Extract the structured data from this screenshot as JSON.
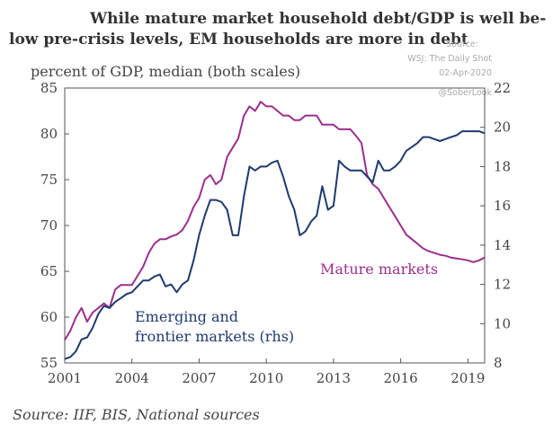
{
  "header": {
    "title_line1": "While mature market household debt/GDP is well be-",
    "title_line2": "low pre-crisis levels, EM households are more in debt",
    "credit_source": "Source: ",
    "credit_publication": "WSJ: The Daily Shot",
    "credit_date": "02-Apr-2020",
    "credit_handle": "@SoberLook"
  },
  "footer": {
    "source": "Source: IIF, BIS, National sources"
  },
  "chart_data": {
    "type": "line",
    "ylabel": "percent of GDP, median (both scales)",
    "ylim_left": [
      55,
      85
    ],
    "ylim_right": [
      8,
      22
    ],
    "xlim": [
      2001,
      2019.75
    ],
    "left_ticks": [
      55,
      60,
      65,
      70,
      75,
      80,
      85
    ],
    "right_ticks": [
      8,
      10,
      12,
      14,
      16,
      18,
      20,
      22
    ],
    "x_ticks": [
      2001,
      2004,
      2007,
      2010,
      2013,
      2016,
      2019
    ],
    "grid": false,
    "annotations": [
      {
        "text_lines": [
          "Mature markets"
        ],
        "series": "mature"
      },
      {
        "text_lines": [
          "Emerging and",
          "frontier markets (rhs)"
        ],
        "series": "em"
      }
    ],
    "series": [
      {
        "key": "mature",
        "axis": "left",
        "color": "#9b2f8e",
        "x": [
          2001.0,
          2001.25,
          2001.5,
          2001.75,
          2002.0,
          2002.25,
          2002.5,
          2002.75,
          2003.0,
          2003.25,
          2003.5,
          2003.75,
          2004.0,
          2004.25,
          2004.5,
          2004.75,
          2005.0,
          2005.25,
          2005.5,
          2005.75,
          2006.0,
          2006.25,
          2006.5,
          2006.75,
          2007.0,
          2007.25,
          2007.5,
          2007.75,
          2008.0,
          2008.25,
          2008.5,
          2008.75,
          2009.0,
          2009.25,
          2009.5,
          2009.75,
          2010.0,
          2010.25,
          2010.5,
          2010.75,
          2011.0,
          2011.25,
          2011.5,
          2011.75,
          2012.0,
          2012.25,
          2012.5,
          2012.75,
          2013.0,
          2013.25,
          2013.5,
          2013.75,
          2014.0,
          2014.25,
          2014.5,
          2014.75,
          2015.0,
          2015.25,
          2015.5,
          2015.75,
          2016.0,
          2016.25,
          2016.5,
          2016.75,
          2017.0,
          2017.25,
          2017.5,
          2017.75,
          2018.0,
          2018.25,
          2018.5,
          2018.75,
          2019.0,
          2019.25,
          2019.5,
          2019.75
        ],
        "values": [
          57.5,
          58.5,
          60.0,
          61.0,
          59.5,
          60.5,
          61.0,
          61.5,
          61.0,
          63.0,
          63.5,
          63.5,
          63.5,
          64.5,
          65.5,
          67.0,
          68.0,
          68.5,
          68.5,
          68.8,
          69.0,
          69.5,
          70.5,
          72.0,
          73.0,
          75.0,
          75.5,
          74.5,
          75.0,
          77.5,
          78.5,
          79.5,
          82.0,
          83.0,
          82.5,
          83.5,
          83.0,
          83.0,
          82.5,
          82.0,
          82.0,
          81.5,
          81.5,
          82.0,
          82.0,
          82.0,
          81.0,
          81.0,
          81.0,
          80.5,
          80.5,
          80.5,
          79.8,
          79.0,
          75.5,
          74.5,
          74.0,
          73.0,
          72.0,
          71.0,
          70.0,
          69.0,
          68.5,
          68.0,
          67.5,
          67.2,
          67.0,
          66.8,
          66.7,
          66.5,
          66.4,
          66.3,
          66.2,
          66.0,
          66.2,
          66.5
        ]
      },
      {
        "key": "em",
        "axis": "right",
        "color": "#1f3a6e",
        "x": [
          2001.0,
          2001.25,
          2001.5,
          2001.75,
          2002.0,
          2002.25,
          2002.5,
          2002.75,
          2003.0,
          2003.25,
          2003.5,
          2003.75,
          2004.0,
          2004.25,
          2004.5,
          2004.75,
          2005.0,
          2005.25,
          2005.5,
          2005.75,
          2006.0,
          2006.25,
          2006.5,
          2006.75,
          2007.0,
          2007.25,
          2007.5,
          2007.75,
          2008.0,
          2008.25,
          2008.5,
          2008.75,
          2009.0,
          2009.25,
          2009.5,
          2009.75,
          2010.0,
          2010.25,
          2010.5,
          2010.75,
          2011.0,
          2011.25,
          2011.5,
          2011.75,
          2012.0,
          2012.25,
          2012.5,
          2012.75,
          2013.0,
          2013.25,
          2013.5,
          2013.75,
          2014.0,
          2014.25,
          2014.5,
          2014.75,
          2015.0,
          2015.25,
          2015.5,
          2015.75,
          2016.0,
          2016.25,
          2016.5,
          2016.75,
          2017.0,
          2017.25,
          2017.5,
          2017.75,
          2018.0,
          2018.25,
          2018.5,
          2018.75,
          2019.0,
          2019.25,
          2019.5,
          2019.75
        ],
        "values": [
          8.2,
          8.3,
          8.6,
          9.2,
          9.3,
          9.8,
          10.5,
          10.9,
          10.8,
          11.1,
          11.3,
          11.5,
          11.6,
          11.9,
          12.2,
          12.2,
          12.4,
          12.5,
          11.9,
          12.0,
          11.6,
          12.0,
          12.2,
          13.2,
          14.5,
          15.5,
          16.3,
          16.3,
          16.2,
          15.8,
          14.5,
          14.5,
          16.5,
          18.0,
          17.8,
          18.0,
          18.0,
          18.2,
          18.3,
          17.5,
          16.5,
          15.8,
          14.5,
          14.7,
          15.2,
          15.5,
          17.0,
          15.8,
          16.0,
          18.3,
          18.0,
          17.8,
          17.8,
          17.8,
          17.5,
          17.2,
          18.3,
          17.8,
          17.8,
          18.0,
          18.3,
          18.8,
          19.0,
          19.2,
          19.5,
          19.5,
          19.4,
          19.3,
          19.4,
          19.5,
          19.6,
          19.8,
          19.8,
          19.8,
          19.8,
          19.7
        ]
      }
    ]
  }
}
